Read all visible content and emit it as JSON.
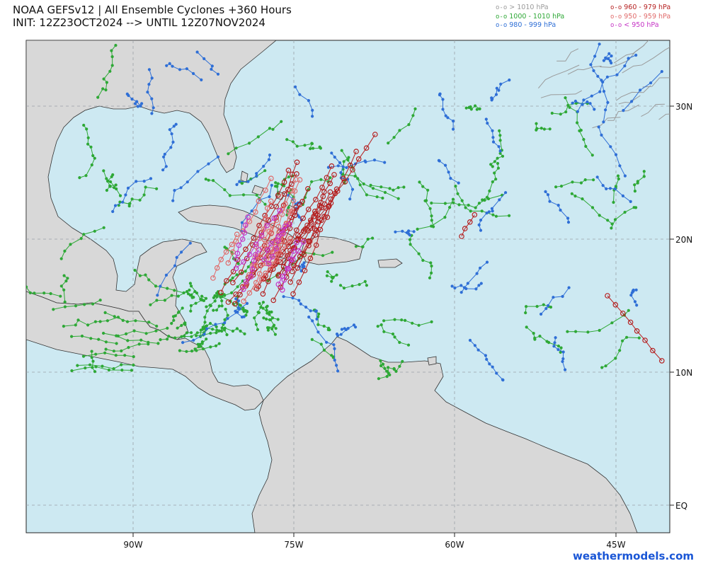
{
  "title": {
    "line1": "NOAA GEFSv12 | All Ensemble Cyclones +360 Hours",
    "line2": "INIT: 12Z23OCT2024 --> UNTIL 12Z07NOV2024"
  },
  "legend": {
    "left": [
      {
        "symbol": "o-o",
        "label": "> 1010 hPa",
        "color": "#9a9a9a"
      },
      {
        "symbol": "o-o",
        "label": "1000 - 1010 hPa",
        "color": "#2ea836"
      },
      {
        "symbol": "o-o",
        "label": "980 - 999 hPa",
        "color": "#2f6fd6"
      }
    ],
    "right": [
      {
        "symbol": "o-o",
        "label": "960 - 979 hPa",
        "color": "#b51f1f"
      },
      {
        "symbol": "o-o",
        "label": "950 - 959 hPa",
        "color": "#e06a6a"
      },
      {
        "symbol": "o-o",
        "label": "< 950 hPa",
        "color": "#c533c5"
      }
    ]
  },
  "axes": {
    "lon_labels": [
      "90W",
      "75W",
      "60W",
      "45W"
    ],
    "lat_labels": [
      "30N",
      "20N",
      "10N",
      "EQ"
    ]
  },
  "colors": {
    "ocean": "#cde9f2",
    "land": "#d8d8d8",
    "grid": "#9aa0a6",
    "gray": "#9a9a9a",
    "green": "#2ea836",
    "blue": "#2f6fd6",
    "red": "#b51f1f",
    "pink": "#e06a6a",
    "magenta": "#c533c5"
  },
  "brand": "weathermodels.com"
}
